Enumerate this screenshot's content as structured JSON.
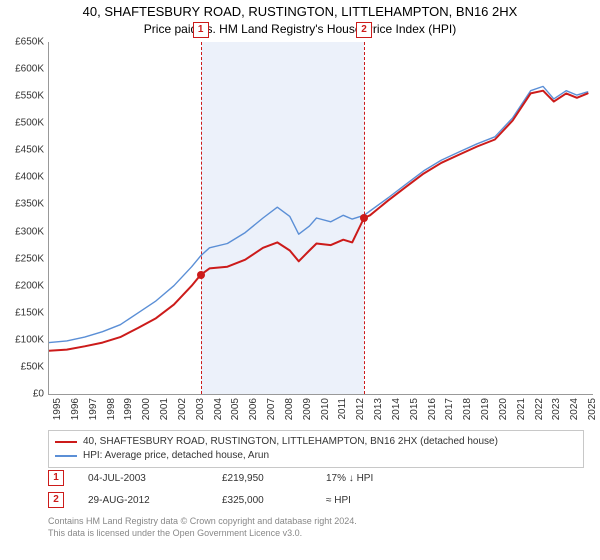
{
  "title": "40, SHAFTESBURY ROAD, RUSTINGTON, LITTLEHAMPTON, BN16 2HX",
  "subtitle": "Price paid vs. HM Land Registry's House Price Index (HPI)",
  "chart": {
    "type": "line",
    "x_years": [
      1995,
      1996,
      1997,
      1998,
      1999,
      2000,
      2001,
      2002,
      2003,
      2004,
      2005,
      2006,
      2007,
      2008,
      2009,
      2010,
      2011,
      2012,
      2013,
      2014,
      2015,
      2016,
      2017,
      2018,
      2019,
      2020,
      2021,
      2022,
      2023,
      2024,
      2025
    ],
    "y_ticks": [
      0,
      50,
      100,
      150,
      200,
      250,
      300,
      350,
      400,
      450,
      500,
      550,
      600,
      650
    ],
    "y_tick_labels": [
      "£0",
      "£50K",
      "£100K",
      "£150K",
      "£200K",
      "£250K",
      "£300K",
      "£350K",
      "£400K",
      "£450K",
      "£500K",
      "£550K",
      "£600K",
      "£650K"
    ],
    "ylim": [
      0,
      650
    ],
    "xlim": [
      1995,
      2025.5
    ],
    "background_color": "#ffffff",
    "series": [
      {
        "name": "40, SHAFTESBURY ROAD, RUSTINGTON, LITTLEHAMPTON, BN16 2HX (detached house)",
        "color": "#cc1b1a",
        "line_width": 2,
        "points": [
          [
            1995.0,
            80
          ],
          [
            1996.0,
            82
          ],
          [
            1997.0,
            88
          ],
          [
            1998.0,
            95
          ],
          [
            1999.0,
            105
          ],
          [
            2000.0,
            122
          ],
          [
            2001.0,
            140
          ],
          [
            2002.0,
            165
          ],
          [
            2003.0,
            200
          ],
          [
            2003.5,
            220
          ],
          [
            2004.0,
            232
          ],
          [
            2005.0,
            235
          ],
          [
            2006.0,
            248
          ],
          [
            2007.0,
            270
          ],
          [
            2007.8,
            280
          ],
          [
            2008.5,
            265
          ],
          [
            2009.0,
            245
          ],
          [
            2009.6,
            265
          ],
          [
            2010.0,
            278
          ],
          [
            2010.8,
            275
          ],
          [
            2011.5,
            285
          ],
          [
            2012.0,
            280
          ],
          [
            2012.66,
            325
          ],
          [
            2013.0,
            330
          ],
          [
            2014.0,
            357
          ],
          [
            2015.0,
            382
          ],
          [
            2016.0,
            407
          ],
          [
            2017.0,
            427
          ],
          [
            2018.0,
            442
          ],
          [
            2019.0,
            457
          ],
          [
            2020.0,
            470
          ],
          [
            2021.0,
            505
          ],
          [
            2022.0,
            555
          ],
          [
            2022.7,
            560
          ],
          [
            2023.3,
            540
          ],
          [
            2024.0,
            555
          ],
          [
            2024.6,
            547
          ],
          [
            2025.2,
            555
          ]
        ]
      },
      {
        "name": "HPI: Average price, detached house, Arun",
        "color": "#5b8fd6",
        "line_width": 1.4,
        "points": [
          [
            1995.0,
            95
          ],
          [
            1996.0,
            98
          ],
          [
            1997.0,
            105
          ],
          [
            1998.0,
            115
          ],
          [
            1999.0,
            128
          ],
          [
            2000.0,
            150
          ],
          [
            2001.0,
            172
          ],
          [
            2002.0,
            200
          ],
          [
            2003.0,
            235
          ],
          [
            2003.5,
            255
          ],
          [
            2004.0,
            270
          ],
          [
            2005.0,
            278
          ],
          [
            2006.0,
            298
          ],
          [
            2007.0,
            325
          ],
          [
            2007.8,
            345
          ],
          [
            2008.5,
            328
          ],
          [
            2009.0,
            295
          ],
          [
            2009.6,
            310
          ],
          [
            2010.0,
            325
          ],
          [
            2010.8,
            318
          ],
          [
            2011.5,
            330
          ],
          [
            2012.0,
            323
          ],
          [
            2012.66,
            330
          ],
          [
            2013.0,
            338
          ],
          [
            2014.0,
            362
          ],
          [
            2015.0,
            387
          ],
          [
            2016.0,
            412
          ],
          [
            2017.0,
            432
          ],
          [
            2018.0,
            447
          ],
          [
            2019.0,
            462
          ],
          [
            2020.0,
            475
          ],
          [
            2021.0,
            510
          ],
          [
            2022.0,
            560
          ],
          [
            2022.7,
            568
          ],
          [
            2023.3,
            545
          ],
          [
            2024.0,
            560
          ],
          [
            2024.6,
            552
          ],
          [
            2025.2,
            558
          ]
        ]
      }
    ],
    "shaded_band": {
      "start": 2003.5,
      "end": 2012.66,
      "color": "rgba(200,215,240,0.35)"
    },
    "markers": [
      {
        "label": "1",
        "x": 2003.5,
        "dash_color": "#cc1b1a"
      },
      {
        "label": "2",
        "x": 2012.66,
        "dash_color": "#cc1b1a"
      }
    ],
    "sale_points": [
      {
        "x": 2003.5,
        "y": 220
      },
      {
        "x": 2012.66,
        "y": 325
      }
    ]
  },
  "legend": {
    "border_color": "#c8c8c8",
    "items": [
      {
        "color": "#cc1b1a",
        "label": "40, SHAFTESBURY ROAD, RUSTINGTON, LITTLEHAMPTON, BN16 2HX (detached house)"
      },
      {
        "color": "#5b8fd6",
        "label": "HPI: Average price, detached house, Arun"
      }
    ]
  },
  "sales": [
    {
      "badge": "1",
      "date": "04-JUL-2003",
      "price": "£219,950",
      "diff_symbol": "17% ↓ HPI"
    },
    {
      "badge": "2",
      "date": "29-AUG-2012",
      "price": "£325,000",
      "diff_symbol": "≈ HPI"
    }
  ],
  "footer_line1": "Contains HM Land Registry data © Crown copyright and database right 2024.",
  "footer_line2": "This data is licensed under the Open Government Licence v3.0."
}
